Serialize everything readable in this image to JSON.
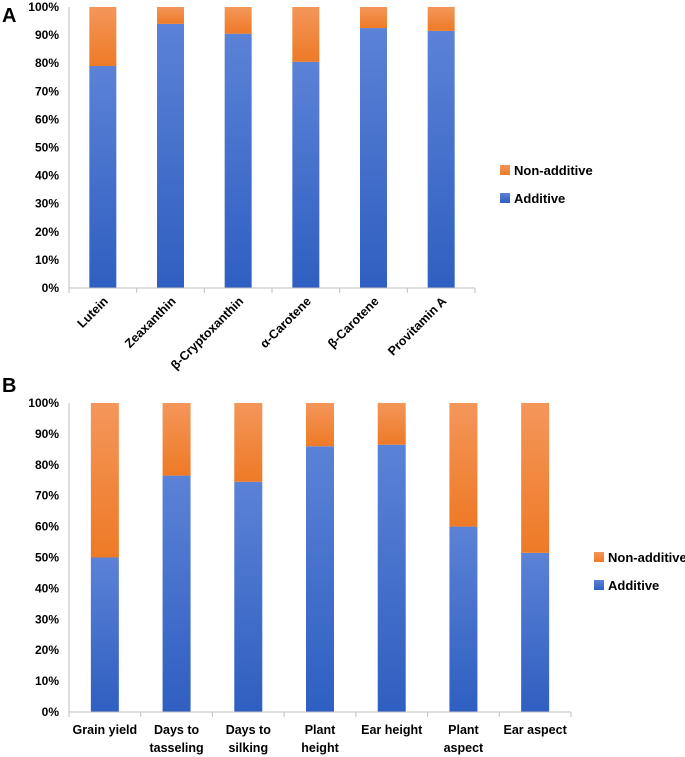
{
  "chart_data": [
    {
      "panel": "A",
      "type": "bar",
      "stacked": true,
      "percent": true,
      "categories": [
        "Lutein",
        "Zeaxanthin",
        "β-Cryptoxanthin",
        "α-Carotene",
        "β-Carotene",
        "Provitamin A"
      ],
      "series": [
        {
          "name": "Additive",
          "values": [
            79,
            94,
            90.5,
            80.5,
            92.5,
            91.5
          ]
        },
        {
          "name": "Non-additive",
          "values": [
            21,
            6,
            9.5,
            19.5,
            7.5,
            8.5
          ]
        }
      ],
      "ylim": [
        0,
        100
      ],
      "yticks": [
        "0%",
        "10%",
        "20%",
        "30%",
        "40%",
        "50%",
        "60%",
        "70%",
        "80%",
        "90%",
        "100%"
      ],
      "legend": [
        "Non-additive",
        "Additive"
      ],
      "legend_position": "right",
      "grid": false
    },
    {
      "panel": "B",
      "type": "bar",
      "stacked": true,
      "percent": true,
      "categories": [
        [
          "Grain yield"
        ],
        [
          "Days to",
          "tasseling"
        ],
        [
          "Days to",
          "silking"
        ],
        [
          "Plant",
          "height"
        ],
        [
          "Ear height"
        ],
        [
          "Plant",
          "aspect"
        ],
        [
          "Ear aspect"
        ]
      ],
      "series": [
        {
          "name": "Additive",
          "values": [
            50,
            76.5,
            74.5,
            86,
            86.5,
            60,
            51.5
          ]
        },
        {
          "name": "Non-additive",
          "values": [
            50,
            23.5,
            25.5,
            14,
            13.5,
            40,
            48.5
          ]
        }
      ],
      "ylim": [
        0,
        100
      ],
      "yticks": [
        "0%",
        "10%",
        "20%",
        "30%",
        "40%",
        "50%",
        "60%",
        "70%",
        "80%",
        "90%",
        "100%"
      ],
      "legend": [
        "Non-additive",
        "Additive"
      ],
      "legend_position": "right",
      "grid": false
    }
  ],
  "colors": {
    "additive_top": "#5b82d6",
    "additive_bottom": "#2f5fc1",
    "nonadditive_top": "#f4965a",
    "nonadditive_bottom": "#ee7a26"
  }
}
